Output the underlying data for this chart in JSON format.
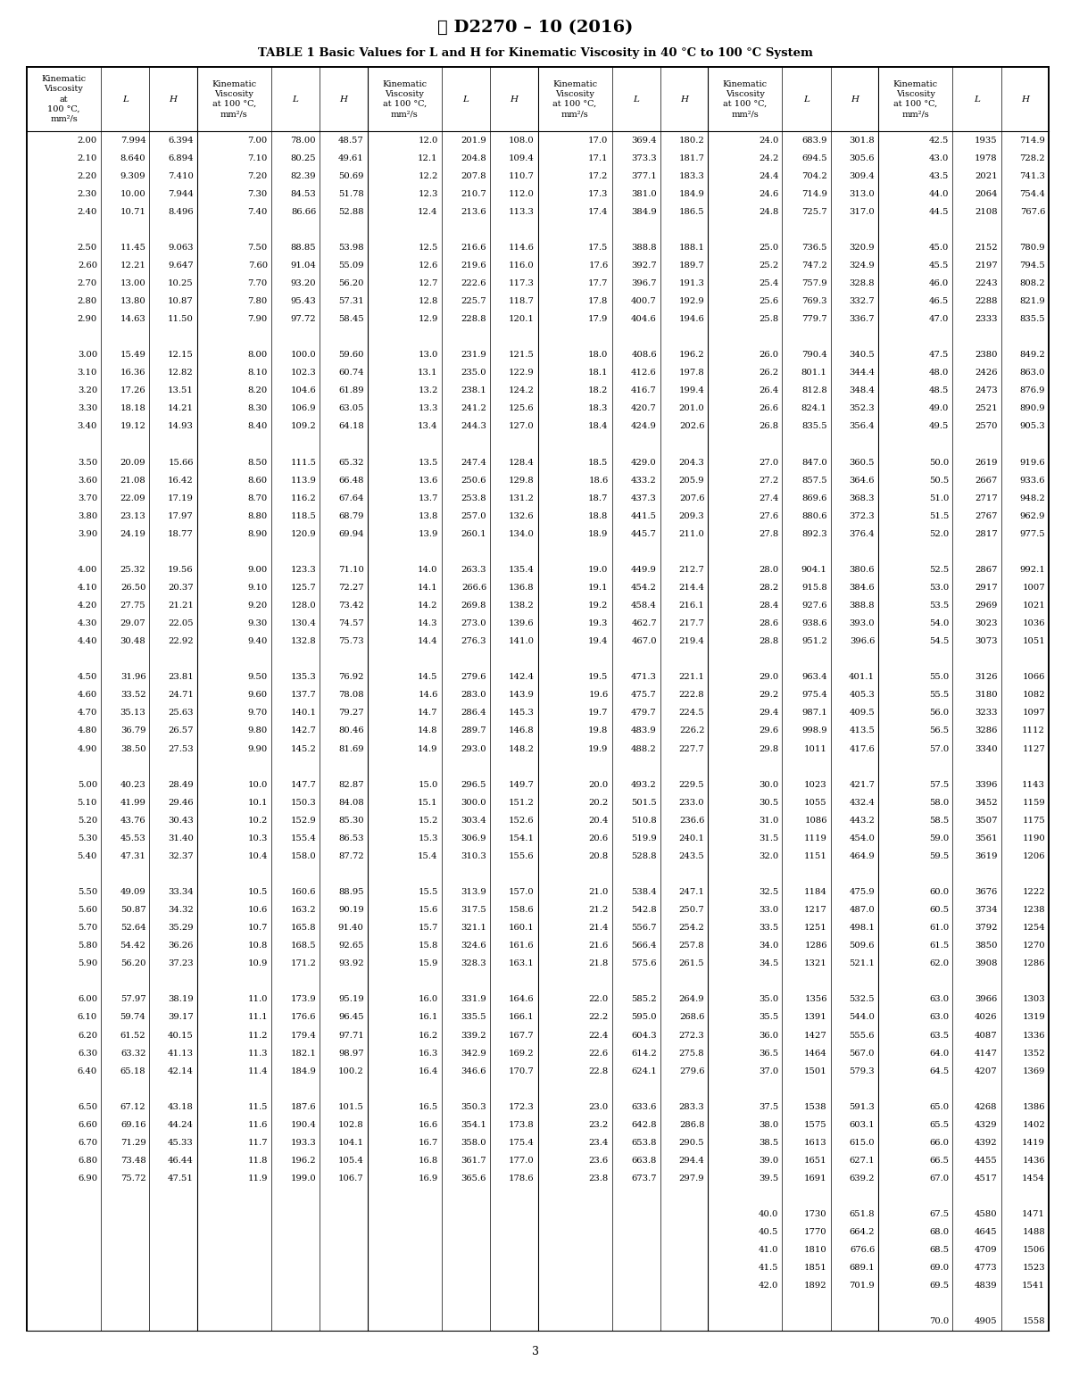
{
  "title_line1": "Ⓜ D2270 – 10 (2016)",
  "table_title": "TABLE 1 Basic Values for L and H for Kinematic Viscosity in 40 °C to 100 °C System",
  "page_number": "3",
  "data": [
    [
      2.0,
      7.994,
      6.394,
      7.0,
      78.0,
      48.57,
      12.0,
      201.9,
      108.0,
      17.0,
      369.4,
      180.2,
      24.0,
      683.9,
      301.8,
      42.5,
      1935,
      714.9
    ],
    [
      2.1,
      8.64,
      6.894,
      7.1,
      80.25,
      49.61,
      12.1,
      204.8,
      109.4,
      17.1,
      373.3,
      181.7,
      24.2,
      694.5,
      305.6,
      43.0,
      1978,
      728.2
    ],
    [
      2.2,
      9.309,
      7.41,
      7.2,
      82.39,
      50.69,
      12.2,
      207.8,
      110.7,
      17.2,
      377.1,
      183.3,
      24.4,
      704.2,
      309.4,
      43.5,
      2021,
      741.3
    ],
    [
      2.3,
      10.0,
      7.944,
      7.3,
      84.53,
      51.78,
      12.3,
      210.7,
      112.0,
      17.3,
      381.0,
      184.9,
      24.6,
      714.9,
      313.0,
      44.0,
      2064,
      754.4
    ],
    [
      2.4,
      10.71,
      8.496,
      7.4,
      86.66,
      52.88,
      12.4,
      213.6,
      113.3,
      17.4,
      384.9,
      186.5,
      24.8,
      725.7,
      317.0,
      44.5,
      2108,
      767.6
    ],
    [
      null,
      null,
      null,
      null,
      null,
      null,
      null,
      null,
      null,
      null,
      null,
      null,
      null,
      null,
      null,
      null,
      null,
      null
    ],
    [
      2.5,
      11.45,
      9.063,
      7.5,
      88.85,
      53.98,
      12.5,
      216.6,
      114.6,
      17.5,
      388.8,
      188.1,
      25.0,
      736.5,
      320.9,
      45.0,
      2152,
      780.9
    ],
    [
      2.6,
      12.21,
      9.647,
      7.6,
      91.04,
      55.09,
      12.6,
      219.6,
      116.0,
      17.6,
      392.7,
      189.7,
      25.2,
      747.2,
      324.9,
      45.5,
      2197,
      794.5
    ],
    [
      2.7,
      13.0,
      10.25,
      7.7,
      93.2,
      56.2,
      12.7,
      222.6,
      117.3,
      17.7,
      396.7,
      191.3,
      25.4,
      757.9,
      328.8,
      46.0,
      2243,
      808.2
    ],
    [
      2.8,
      13.8,
      10.87,
      7.8,
      95.43,
      57.31,
      12.8,
      225.7,
      118.7,
      17.8,
      400.7,
      192.9,
      25.6,
      769.3,
      332.7,
      46.5,
      2288,
      821.9
    ],
    [
      2.9,
      14.63,
      11.5,
      7.9,
      97.72,
      58.45,
      12.9,
      228.8,
      120.1,
      17.9,
      404.6,
      194.6,
      25.8,
      779.7,
      336.7,
      47.0,
      2333,
      835.5
    ],
    [
      null,
      null,
      null,
      null,
      null,
      null,
      null,
      null,
      null,
      null,
      null,
      null,
      null,
      null,
      null,
      null,
      null,
      null
    ],
    [
      3.0,
      15.49,
      12.15,
      8.0,
      100.0,
      59.6,
      13.0,
      231.9,
      121.5,
      18.0,
      408.6,
      196.2,
      26.0,
      790.4,
      340.5,
      47.5,
      2380,
      849.2
    ],
    [
      3.1,
      16.36,
      12.82,
      8.1,
      102.3,
      60.74,
      13.1,
      235.0,
      122.9,
      18.1,
      412.6,
      197.8,
      26.2,
      801.1,
      344.4,
      48.0,
      2426,
      863.0
    ],
    [
      3.2,
      17.26,
      13.51,
      8.2,
      104.6,
      61.89,
      13.2,
      238.1,
      124.2,
      18.2,
      416.7,
      199.4,
      26.4,
      812.8,
      348.4,
      48.5,
      2473,
      876.9
    ],
    [
      3.3,
      18.18,
      14.21,
      8.3,
      106.9,
      63.05,
      13.3,
      241.2,
      125.6,
      18.3,
      420.7,
      201.0,
      26.6,
      824.1,
      352.3,
      49.0,
      2521,
      890.9
    ],
    [
      3.4,
      19.12,
      14.93,
      8.4,
      109.2,
      64.18,
      13.4,
      244.3,
      127.0,
      18.4,
      424.9,
      202.6,
      26.8,
      835.5,
      356.4,
      49.5,
      2570,
      905.3
    ],
    [
      null,
      null,
      null,
      null,
      null,
      null,
      null,
      null,
      null,
      null,
      null,
      null,
      null,
      null,
      null,
      null,
      null,
      null
    ],
    [
      3.5,
      20.09,
      15.66,
      8.5,
      111.5,
      65.32,
      13.5,
      247.4,
      128.4,
      18.5,
      429.0,
      204.3,
      27.0,
      847.0,
      360.5,
      50.0,
      2619,
      919.6
    ],
    [
      3.6,
      21.08,
      16.42,
      8.6,
      113.9,
      66.48,
      13.6,
      250.6,
      129.8,
      18.6,
      433.2,
      205.9,
      27.2,
      857.5,
      364.6,
      50.5,
      2667,
      933.6
    ],
    [
      3.7,
      22.09,
      17.19,
      8.7,
      116.2,
      67.64,
      13.7,
      253.8,
      131.2,
      18.7,
      437.3,
      207.6,
      27.4,
      869.6,
      368.3,
      51.0,
      2717,
      948.2
    ],
    [
      3.8,
      23.13,
      17.97,
      8.8,
      118.5,
      68.79,
      13.8,
      257.0,
      132.6,
      18.8,
      441.5,
      209.3,
      27.6,
      880.6,
      372.3,
      51.5,
      2767,
      962.9
    ],
    [
      3.9,
      24.19,
      18.77,
      8.9,
      120.9,
      69.94,
      13.9,
      260.1,
      134.0,
      18.9,
      445.7,
      211.0,
      27.8,
      892.3,
      376.4,
      52.0,
      2817,
      977.5
    ],
    [
      null,
      null,
      null,
      null,
      null,
      null,
      null,
      null,
      null,
      null,
      null,
      null,
      null,
      null,
      null,
      null,
      null,
      null
    ],
    [
      4.0,
      25.32,
      19.56,
      9.0,
      123.3,
      71.1,
      14.0,
      263.3,
      135.4,
      19.0,
      449.9,
      212.7,
      28.0,
      904.1,
      380.6,
      52.5,
      2867,
      992.1
    ],
    [
      4.1,
      26.5,
      20.37,
      9.1,
      125.7,
      72.27,
      14.1,
      266.6,
      136.8,
      19.1,
      454.2,
      214.4,
      28.2,
      915.8,
      384.6,
      53.0,
      2917,
      1007
    ],
    [
      4.2,
      27.75,
      21.21,
      9.2,
      128.0,
      73.42,
      14.2,
      269.8,
      138.2,
      19.2,
      458.4,
      216.1,
      28.4,
      927.6,
      388.8,
      53.5,
      2969,
      1021
    ],
    [
      4.3,
      29.07,
      22.05,
      9.3,
      130.4,
      74.57,
      14.3,
      273.0,
      139.6,
      19.3,
      462.7,
      217.7,
      28.6,
      938.6,
      393.0,
      54.0,
      3023,
      1036
    ],
    [
      4.4,
      30.48,
      22.92,
      9.4,
      132.8,
      75.73,
      14.4,
      276.3,
      141.0,
      19.4,
      467.0,
      219.4,
      28.8,
      951.2,
      396.6,
      54.5,
      3073,
      1051
    ],
    [
      null,
      null,
      null,
      null,
      null,
      null,
      null,
      null,
      null,
      null,
      null,
      null,
      null,
      null,
      null,
      null,
      null,
      null
    ],
    [
      4.5,
      31.96,
      23.81,
      9.5,
      135.3,
      76.92,
      14.5,
      279.6,
      142.4,
      19.5,
      471.3,
      221.1,
      29.0,
      963.4,
      401.1,
      55.0,
      3126,
      1066
    ],
    [
      4.6,
      33.52,
      24.71,
      9.6,
      137.7,
      78.08,
      14.6,
      283.0,
      143.9,
      19.6,
      475.7,
      222.8,
      29.2,
      975.4,
      405.3,
      55.5,
      3180,
      1082
    ],
    [
      4.7,
      35.13,
      25.63,
      9.7,
      140.1,
      79.27,
      14.7,
      286.4,
      145.3,
      19.7,
      479.7,
      224.5,
      29.4,
      987.1,
      409.5,
      56.0,
      3233,
      1097
    ],
    [
      4.8,
      36.79,
      26.57,
      9.8,
      142.7,
      80.46,
      14.8,
      289.7,
      146.8,
      19.8,
      483.9,
      226.2,
      29.6,
      998.9,
      413.5,
      56.5,
      3286,
      1112
    ],
    [
      4.9,
      38.5,
      27.53,
      9.9,
      145.2,
      81.69,
      14.9,
      293.0,
      148.2,
      19.9,
      488.2,
      227.7,
      29.8,
      1011,
      417.6,
      57.0,
      3340,
      1127
    ],
    [
      null,
      null,
      null,
      null,
      null,
      null,
      null,
      null,
      null,
      null,
      null,
      null,
      null,
      null,
      null,
      null,
      null,
      null
    ],
    [
      5.0,
      40.23,
      28.49,
      10.0,
      147.7,
      82.87,
      15.0,
      296.5,
      149.7,
      20.0,
      493.2,
      229.5,
      30.0,
      1023,
      421.7,
      57.5,
      3396,
      1143
    ],
    [
      5.1,
      41.99,
      29.46,
      10.1,
      150.3,
      84.08,
      15.1,
      300.0,
      151.2,
      20.2,
      501.5,
      233.0,
      30.5,
      1055,
      432.4,
      58.0,
      3452,
      1159
    ],
    [
      5.2,
      43.76,
      30.43,
      10.2,
      152.9,
      85.3,
      15.2,
      303.4,
      152.6,
      20.4,
      510.8,
      236.6,
      31.0,
      1086,
      443.2,
      58.5,
      3507,
      1175
    ],
    [
      5.3,
      45.53,
      31.4,
      10.3,
      155.4,
      86.53,
      15.3,
      306.9,
      154.1,
      20.6,
      519.9,
      240.1,
      31.5,
      1119,
      454.0,
      59.0,
      3561,
      1190
    ],
    [
      5.4,
      47.31,
      32.37,
      10.4,
      158.0,
      87.72,
      15.4,
      310.3,
      155.6,
      20.8,
      528.8,
      243.5,
      32.0,
      1151,
      464.9,
      59.5,
      3619,
      1206
    ],
    [
      null,
      null,
      null,
      null,
      null,
      null,
      null,
      null,
      null,
      null,
      null,
      null,
      null,
      null,
      null,
      null,
      null,
      null
    ],
    [
      5.5,
      49.09,
      33.34,
      10.5,
      160.6,
      88.95,
      15.5,
      313.9,
      157.0,
      21.0,
      538.4,
      247.1,
      32.5,
      1184,
      475.9,
      60.0,
      3676,
      1222
    ],
    [
      5.6,
      50.87,
      34.32,
      10.6,
      163.2,
      90.19,
      15.6,
      317.5,
      158.6,
      21.2,
      542.8,
      250.7,
      33.0,
      1217,
      487.0,
      60.5,
      3734,
      1238
    ],
    [
      5.7,
      52.64,
      35.29,
      10.7,
      165.8,
      91.4,
      15.7,
      321.1,
      160.1,
      21.4,
      556.7,
      254.2,
      33.5,
      1251,
      498.1,
      61.0,
      3792,
      1254
    ],
    [
      5.8,
      54.42,
      36.26,
      10.8,
      168.5,
      92.65,
      15.8,
      324.6,
      161.6,
      21.6,
      566.4,
      257.8,
      34.0,
      1286,
      509.6,
      61.5,
      3850,
      1270
    ],
    [
      5.9,
      56.2,
      37.23,
      10.9,
      171.2,
      93.92,
      15.9,
      328.3,
      163.1,
      21.8,
      575.6,
      261.5,
      34.5,
      1321,
      521.1,
      62.0,
      3908,
      1286
    ],
    [
      null,
      null,
      null,
      null,
      null,
      null,
      null,
      null,
      null,
      null,
      null,
      null,
      null,
      null,
      null,
      null,
      null,
      null
    ],
    [
      6.0,
      57.97,
      38.19,
      11.0,
      173.9,
      95.19,
      16.0,
      331.9,
      164.6,
      22.0,
      585.2,
      264.9,
      35.0,
      1356,
      532.5,
      63.0,
      3966,
      1303
    ],
    [
      6.1,
      59.74,
      39.17,
      11.1,
      176.6,
      96.45,
      16.1,
      335.5,
      166.1,
      22.2,
      595.0,
      268.6,
      35.5,
      1391,
      544.0,
      63.0,
      4026,
      1319
    ],
    [
      6.2,
      61.52,
      40.15,
      11.2,
      179.4,
      97.71,
      16.2,
      339.2,
      167.7,
      22.4,
      604.3,
      272.3,
      36.0,
      1427,
      555.6,
      63.5,
      4087,
      1336
    ],
    [
      6.3,
      63.32,
      41.13,
      11.3,
      182.1,
      98.97,
      16.3,
      342.9,
      169.2,
      22.6,
      614.2,
      275.8,
      36.5,
      1464,
      567.0,
      64.0,
      4147,
      1352
    ],
    [
      6.4,
      65.18,
      42.14,
      11.4,
      184.9,
      100.2,
      16.4,
      346.6,
      170.7,
      22.8,
      624.1,
      279.6,
      37.0,
      1501,
      579.3,
      64.5,
      4207,
      1369
    ],
    [
      null,
      null,
      null,
      null,
      null,
      null,
      null,
      null,
      null,
      null,
      null,
      null,
      null,
      null,
      null,
      null,
      null,
      null
    ],
    [
      6.5,
      67.12,
      43.18,
      11.5,
      187.6,
      101.5,
      16.5,
      350.3,
      172.3,
      23.0,
      633.6,
      283.3,
      37.5,
      1538,
      591.3,
      65.0,
      4268,
      1386
    ],
    [
      6.6,
      69.16,
      44.24,
      11.6,
      190.4,
      102.8,
      16.6,
      354.1,
      173.8,
      23.2,
      642.8,
      286.8,
      38.0,
      1575,
      603.1,
      65.5,
      4329,
      1402
    ],
    [
      6.7,
      71.29,
      45.33,
      11.7,
      193.3,
      104.1,
      16.7,
      358.0,
      175.4,
      23.4,
      653.8,
      290.5,
      38.5,
      1613,
      615.0,
      66.0,
      4392,
      1419
    ],
    [
      6.8,
      73.48,
      46.44,
      11.8,
      196.2,
      105.4,
      16.8,
      361.7,
      177.0,
      23.6,
      663.8,
      294.4,
      39.0,
      1651,
      627.1,
      66.5,
      4455,
      1436
    ],
    [
      6.9,
      75.72,
      47.51,
      11.9,
      199.0,
      106.7,
      16.9,
      365.6,
      178.6,
      23.8,
      673.7,
      297.9,
      39.5,
      1691,
      639.2,
      67.0,
      4517,
      1454
    ],
    [
      null,
      null,
      null,
      null,
      null,
      null,
      null,
      null,
      null,
      null,
      null,
      null,
      null,
      null,
      null,
      null,
      null,
      null
    ],
    [
      null,
      null,
      null,
      null,
      null,
      null,
      null,
      null,
      null,
      null,
      null,
      null,
      40.0,
      1730,
      651.8,
      67.5,
      4580,
      1471
    ],
    [
      null,
      null,
      null,
      null,
      null,
      null,
      null,
      null,
      null,
      null,
      null,
      null,
      40.5,
      1770,
      664.2,
      68.0,
      4645,
      1488
    ],
    [
      null,
      null,
      null,
      null,
      null,
      null,
      null,
      null,
      null,
      null,
      null,
      null,
      41.0,
      1810,
      676.6,
      68.5,
      4709,
      1506
    ],
    [
      null,
      null,
      null,
      null,
      null,
      null,
      null,
      null,
      null,
      null,
      null,
      null,
      41.5,
      1851,
      689.1,
      69.0,
      4773,
      1523
    ],
    [
      null,
      null,
      null,
      null,
      null,
      null,
      null,
      null,
      null,
      null,
      null,
      null,
      42.0,
      1892,
      701.9,
      69.5,
      4839,
      1541
    ],
    [
      null,
      null,
      null,
      null,
      null,
      null,
      null,
      null,
      null,
      null,
      null,
      null,
      null,
      null,
      null,
      null,
      null,
      null
    ],
    [
      null,
      null,
      null,
      null,
      null,
      null,
      null,
      null,
      null,
      null,
      null,
      null,
      null,
      null,
      null,
      70.0,
      4905,
      1558
    ]
  ],
  "background_color": "#ffffff",
  "text_color": "#000000",
  "fontsize_data": 7.2,
  "fontsize_header": 7.0,
  "fontsize_title": 9.5,
  "fontsize_logo": 14
}
